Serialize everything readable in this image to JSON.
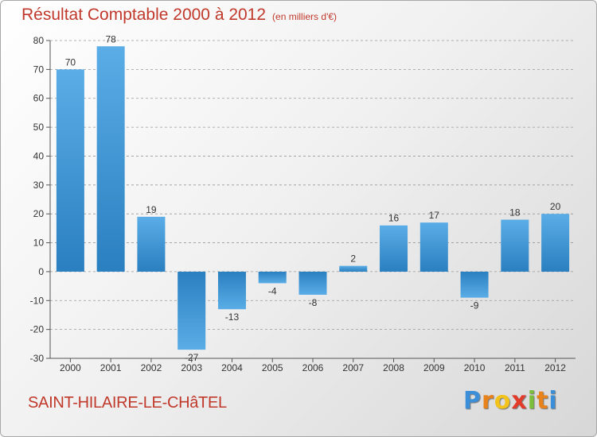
{
  "chart_data": {
    "type": "bar",
    "title": "Résultat Comptable 2000 à 2012",
    "subtitle": "(en milliers d'€)",
    "categories": [
      "2000",
      "2001",
      "2002",
      "2003",
      "2004",
      "2005",
      "2006",
      "2007",
      "2008",
      "2009",
      "2010",
      "2011",
      "2012"
    ],
    "values": [
      70,
      78,
      19,
      -27,
      -13,
      -4,
      -8,
      2,
      16,
      17,
      -9,
      18,
      20
    ],
    "value_labels": [
      "70",
      "78",
      "19",
      "-27",
      "-13",
      "-4",
      "-8",
      "2",
      "16",
      "17",
      "-9",
      "18",
      "20"
    ],
    "ylim": [
      -30,
      80
    ],
    "yticks": [
      -30,
      -20,
      -10,
      0,
      10,
      20,
      30,
      40,
      50,
      60,
      70,
      80
    ],
    "grid": true,
    "legend": "none",
    "colors": {
      "bar_light": "#5aade6",
      "bar_dark": "#2a7fc0",
      "axis": "#555555",
      "grid": "#999999",
      "title": "#c0392b"
    }
  },
  "commune": "SAINT-HILAIRE-LE-CHâTEL",
  "logo": {
    "letters": [
      "P",
      "r",
      "o",
      "x",
      "i",
      "t",
      "i"
    ],
    "colors": [
      "#3b8fd8",
      "#e8821a",
      "#f3c21b",
      "#e23b2a",
      "#7bbf3a",
      "#e8821a",
      "#3b8fd8"
    ]
  }
}
